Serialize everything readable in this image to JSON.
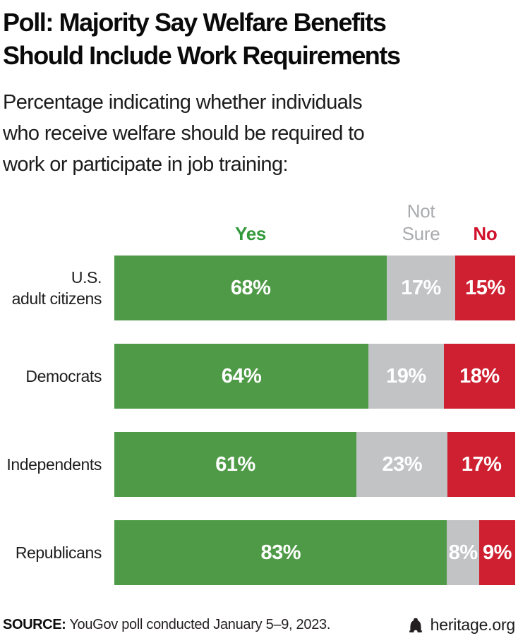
{
  "header": {
    "title_lines": [
      "Poll: Majority Say Welfare Benefits",
      "Should Include Work Requirements"
    ],
    "subtitle_lines": [
      "Percentage indicating whether individuals",
      "who receive welfare should be required to",
      "work or participate in job training:"
    ]
  },
  "chart_data": {
    "type": "bar",
    "orientation": "horizontal",
    "stacked": true,
    "title": "Poll: Majority Say Welfare Benefits Should Include Work Requirements",
    "subtitle": "Percentage indicating whether individuals who receive welfare should be required to work or participate in job training:",
    "categories": [
      "U.S. adult citizens",
      "Democrats",
      "Independents",
      "Republicans"
    ],
    "category_display": [
      [
        "U.S.",
        "adult citizens"
      ],
      [
        "Democrats"
      ],
      [
        "Independents"
      ],
      [
        "Republicans"
      ]
    ],
    "series": [
      {
        "name": "Yes",
        "color": "#4f9a47",
        "label_color": "#31993a",
        "label_weight": "700",
        "values": [
          68,
          64,
          61,
          83
        ]
      },
      {
        "name": "Not Sure",
        "color": "#c1c3c5",
        "label_color": "#a9abae",
        "label_weight": "400",
        "values": [
          17,
          19,
          23,
          8
        ]
      },
      {
        "name": "No",
        "color": "#ce2030",
        "label_color": "#d0122c",
        "label_weight": "700",
        "values": [
          15,
          18,
          17,
          9
        ]
      }
    ],
    "value_suffix": "%",
    "xlim": [
      0,
      100
    ],
    "legend_position": "top",
    "grid": false,
    "value_label_color": "#ffffff"
  },
  "footer": {
    "source_label": "SOURCE:",
    "source_text": " YouGov poll conducted January 5–9, 2023.",
    "brand": "heritage.org",
    "brand_icon": "liberty-bell-icon"
  },
  "colors": {
    "yes_green": "#4f9a47",
    "not_sure_gray": "#c1c3c5",
    "no_red": "#ce2030",
    "title_black": "#0a0a0a",
    "body_text": "#1c1c1c",
    "bell_black": "#231f20"
  }
}
